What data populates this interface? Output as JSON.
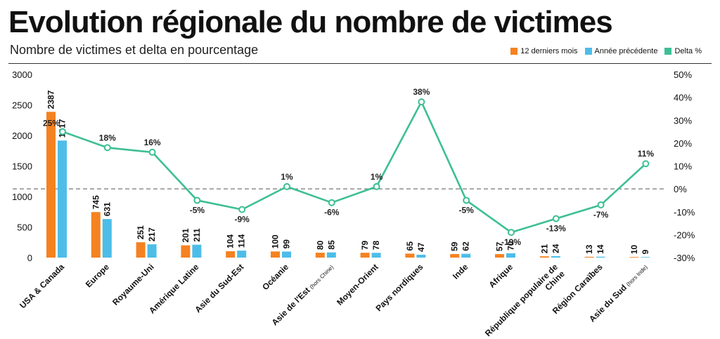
{
  "header": {
    "title": "Evolution régionale du nombre de victimes",
    "subtitle": "Nombre de victimes et delta en pourcentage"
  },
  "colors": {
    "current": "#f58220",
    "previous": "#4dbde8",
    "delta": "#3dbf95"
  },
  "chart_data": {
    "type": "bar",
    "categories": [
      "USA & Canada",
      "Europe",
      "Royaume-Uni",
      "Amérique Latine",
      "Asie du Sud-Est",
      "Océanie",
      "Asie de l'Est",
      "Moyen-Orient",
      "Pays nordiques",
      "Inde",
      "Afrique",
      "République populaire de Chine",
      "Région Caraïbes",
      "Asie du Sud"
    ],
    "category_notes": [
      "",
      "",
      "",
      "",
      "",
      "",
      "(hors Chine)",
      "",
      "",
      "",
      "",
      "",
      "",
      "(hors Inde)"
    ],
    "series": [
      {
        "name": "12 derniers mois",
        "values": [
          2387,
          745,
          251,
          201,
          104,
          100,
          80,
          79,
          65,
          59,
          57,
          21,
          13,
          10
        ]
      },
      {
        "name": "Année précédente",
        "values": [
          1917,
          631,
          217,
          211,
          114,
          99,
          85,
          78,
          47,
          62,
          70,
          24,
          14,
          9
        ]
      },
      {
        "name": "Delta %",
        "type": "line",
        "axis": "right",
        "values": [
          25,
          18,
          16,
          -5,
          -9,
          1,
          -6,
          1,
          38,
          -5,
          -19,
          -13,
          -7,
          11
        ]
      }
    ],
    "delta_labels": [
      "25%",
      "18%",
      "16%",
      "-5%",
      "-9%",
      "1%",
      "-6%",
      "1%",
      "38%",
      "-5%",
      "-19%",
      "-13%",
      "-7%",
      "11%"
    ],
    "yticks_left": [
      "0",
      "500",
      "1000",
      "1500",
      "2000",
      "2500",
      "3000"
    ],
    "yticks_right": [
      "-30%",
      "-20%",
      "-10%",
      "0%",
      "10%",
      "20%",
      "30%",
      "40%",
      "50%"
    ],
    "ylim_left": [
      0,
      3000
    ],
    "ylim_right": [
      -30,
      50
    ],
    "legend_position": "top-right",
    "zero_line": "dashed"
  }
}
